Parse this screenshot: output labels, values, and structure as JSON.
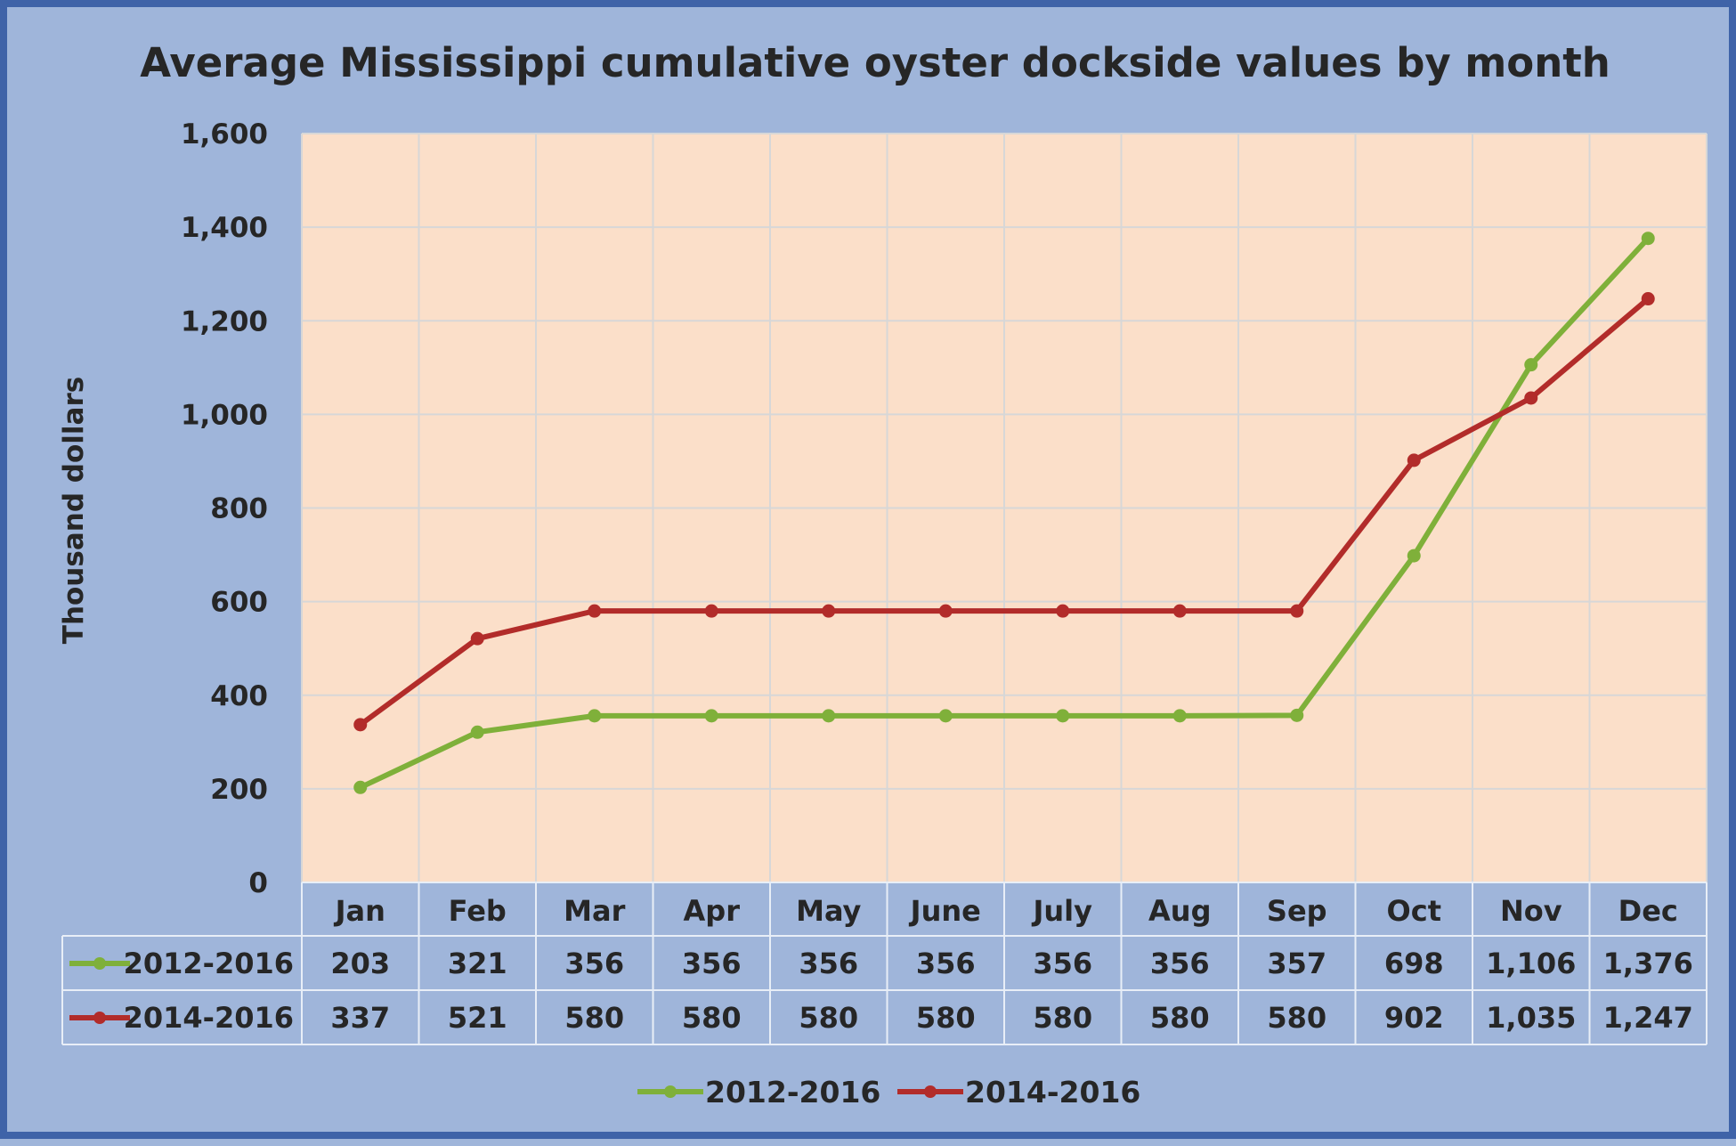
{
  "chart_data": {
    "type": "line",
    "title": "Average Mississippi  cumulative oyster dockside values by month",
    "ylabel": "Thousand dollars",
    "xlabel": "",
    "ylim": [
      0,
      1600
    ],
    "yticks": [
      "0",
      "200",
      "400",
      "600",
      "800",
      "1,000",
      "1,200",
      "1,400",
      "1,600"
    ],
    "ytick_values": [
      0,
      200,
      400,
      600,
      800,
      1000,
      1200,
      1400,
      1600
    ],
    "categories": [
      "Jan",
      "Feb",
      "Mar",
      "Apr",
      "May",
      "June",
      "July",
      "Aug",
      "Sep",
      "Oct",
      "Nov",
      "Dec"
    ],
    "grid": true,
    "legend_position": "bottom",
    "plot_background": "#fbdfc9",
    "series": [
      {
        "name": "2012-2016",
        "color": "#7fb03a",
        "values": [
          203,
          321,
          356,
          356,
          356,
          356,
          356,
          356,
          357,
          698,
          1106,
          1376
        ],
        "labels": [
          "203",
          "321",
          "356",
          "356",
          "356",
          "356",
          "356",
          "356",
          "357",
          "698",
          "1,106",
          "1,376"
        ]
      },
      {
        "name": "2014-2016",
        "color": "#b22c2a",
        "values": [
          337,
          521,
          580,
          580,
          580,
          580,
          580,
          580,
          580,
          902,
          1035,
          1247
        ],
        "labels": [
          "337",
          "521",
          "580",
          "580",
          "580",
          "580",
          "580",
          "580",
          "580",
          "902",
          "1,035",
          "1,247"
        ]
      }
    ]
  }
}
